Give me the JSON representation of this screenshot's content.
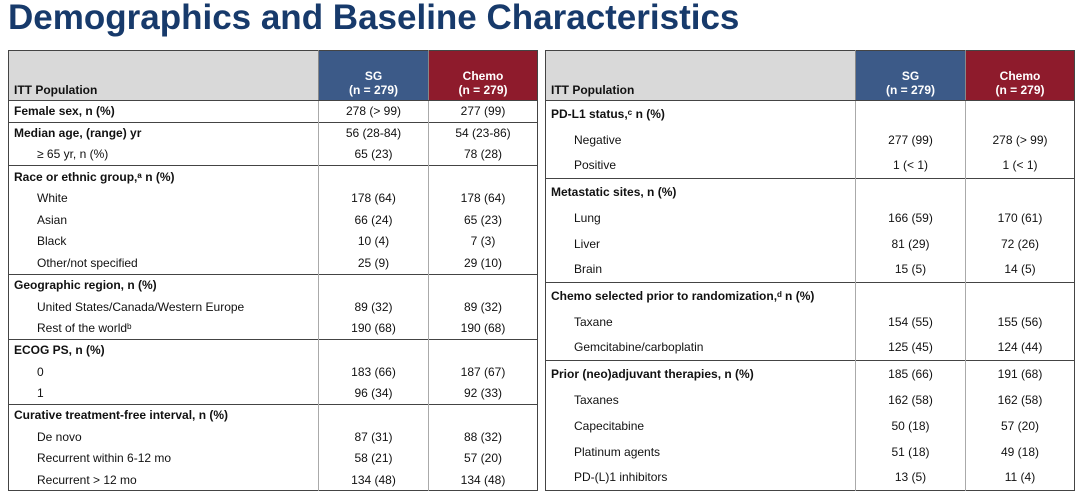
{
  "title": "Demographics and Baseline Characteristics",
  "tables": [
    {
      "header": {
        "label": "ITT Population",
        "sg": [
          "SG",
          "(n = 279)"
        ],
        "chemo": [
          "Chemo",
          "(n = 279)"
        ]
      },
      "groups": [
        {
          "rows": [
            {
              "label": "Female sex, n (%)",
              "sg": "278 (> 99)",
              "chemo": "277 (99)"
            }
          ]
        },
        {
          "rows": [
            {
              "label": "Median age, (range) yr",
              "sg": "56 (28-84)",
              "chemo": "54 (23-86)"
            },
            {
              "label": "≥ 65 yr, n (%)",
              "sg": "65 (23)",
              "chemo": "78 (28)"
            }
          ]
        },
        {
          "rows": [
            {
              "label": "Race or ethnic group,ᵃ n (%)"
            },
            {
              "label": "White",
              "sg": "178 (64)",
              "chemo": "178 (64)"
            },
            {
              "label": "Asian",
              "sg": "66 (24)",
              "chemo": "65 (23)"
            },
            {
              "label": "Black",
              "sg": "10 (4)",
              "chemo": "7 (3)"
            },
            {
              "label": "Other/not specified",
              "sg": "25 (9)",
              "chemo": "29 (10)"
            }
          ]
        },
        {
          "rows": [
            {
              "label": "Geographic region, n (%)"
            },
            {
              "label": "United States/Canada/Western Europe",
              "sg": "89 (32)",
              "chemo": "89 (32)"
            },
            {
              "label": "Rest of the worldᵇ",
              "sg": "190 (68)",
              "chemo": "190 (68)"
            }
          ]
        },
        {
          "rows": [
            {
              "label": "ECOG PS, n (%)"
            },
            {
              "label": "0",
              "sg": "183 (66)",
              "chemo": "187 (67)"
            },
            {
              "label": "1",
              "sg": "96 (34)",
              "chemo": "92 (33)"
            }
          ]
        },
        {
          "rows": [
            {
              "label": "Curative treatment-free interval, n (%)"
            },
            {
              "label": "De novo",
              "sg": "87 (31)",
              "chemo": "88 (32)"
            },
            {
              "label": "Recurrent within 6-12 mo",
              "sg": "58 (21)",
              "chemo": "57 (20)"
            },
            {
              "label": "Recurrent > 12 mo",
              "sg": "134 (48)",
              "chemo": "134 (48)"
            }
          ]
        }
      ]
    },
    {
      "header": {
        "label": "ITT Population",
        "sg": [
          "SG",
          "(n = 279)"
        ],
        "chemo": [
          "Chemo",
          "(n = 279)"
        ]
      },
      "groups": [
        {
          "rows": [
            {
              "label": "PD-L1 status,ᶜ n (%)"
            },
            {
              "label": "Negative",
              "sg": "277 (99)",
              "chemo": "278 (> 99)"
            },
            {
              "label": "Positive",
              "sg": "1 (< 1)",
              "chemo": "1 (< 1)"
            }
          ]
        },
        {
          "rows": [
            {
              "label": "Metastatic sites, n (%)"
            },
            {
              "label": "Lung",
              "sg": "166 (59)",
              "chemo": "170 (61)"
            },
            {
              "label": "Liver",
              "sg": "81 (29)",
              "chemo": "72 (26)"
            },
            {
              "label": "Brain",
              "sg": "15 (5)",
              "chemo": "14 (5)"
            }
          ]
        },
        {
          "rows": [
            {
              "label": "Chemo selected prior to randomization,ᵈ n (%)"
            },
            {
              "label": "Taxane",
              "sg": "154 (55)",
              "chemo": "155 (56)"
            },
            {
              "label": "Gemcitabine/carboplatin",
              "sg": "125 (45)",
              "chemo": "124 (44)"
            }
          ]
        },
        {
          "rows": [
            {
              "label": "Prior (neo)adjuvant therapies, n (%)",
              "sg": "185 (66)",
              "chemo": "191 (68)"
            },
            {
              "label": "Taxanes",
              "sg": "162 (58)",
              "chemo": "162 (58)"
            },
            {
              "label": "Capecitabine",
              "sg": "50 (18)",
              "chemo": "57 (20)"
            },
            {
              "label": "Platinum agents",
              "sg": "51 (18)",
              "chemo": "49 (18)"
            },
            {
              "label": "PD-(L)1 inhibitors",
              "sg": "13 (5)",
              "chemo": "11 (4)"
            }
          ]
        }
      ]
    }
  ]
}
